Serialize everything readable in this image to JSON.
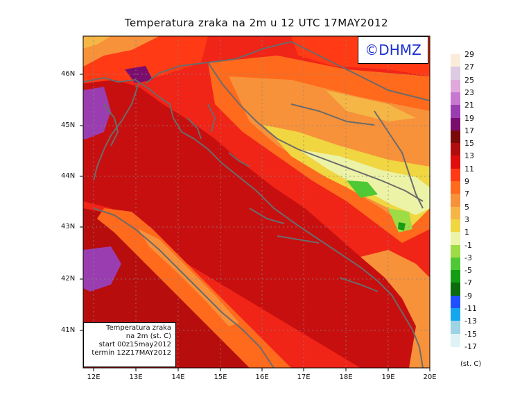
{
  "title": "Temperatura zraka na 2m u 12 UTC 17MAY2012",
  "logo_text": "©DHMZ",
  "info": {
    "line1": "Temperatura zraka",
    "line2": "na 2m (st. C)",
    "line3": "start 00z15may2012",
    "line4": "termin 12Z17MAY2012"
  },
  "axes": {
    "lat_labels": [
      "46N",
      "45N",
      "44N",
      "43N",
      "42N",
      "41N"
    ],
    "lon_labels": [
      "12E",
      "13E",
      "14E",
      "15E",
      "16E",
      "17E",
      "18E",
      "19E",
      "20E"
    ]
  },
  "legend": {
    "units": "(st. C)",
    "labels": [
      "29",
      "27",
      "25",
      "23",
      "21",
      "19",
      "17",
      "15",
      "13",
      "11",
      "9",
      "7",
      "5",
      "3",
      "1",
      "-1",
      "-3",
      "-5",
      "-7",
      "-9",
      "-11",
      "-13",
      "-15",
      "-17"
    ],
    "colors": [
      "#fbecd9",
      "#dccbe3",
      "#e0a9dc",
      "#c778d0",
      "#9a3db0",
      "#7a0d6e",
      "#7a0a0a",
      "#b00e0e",
      "#e00d0d",
      "#ff3a14",
      "#ff6a1c",
      "#f7913a",
      "#f5b646",
      "#f0d641",
      "#ecf3a6",
      "#9edc45",
      "#4ec834",
      "#139d13",
      "#0b6c0b",
      "#1f50ff",
      "#15a7ee",
      "#9dd3e5",
      "#dff3f6"
    ]
  },
  "colors": {
    "sea": "#c80f0f",
    "land": "#f02417",
    "coastline": "#6b6b6b"
  }
}
